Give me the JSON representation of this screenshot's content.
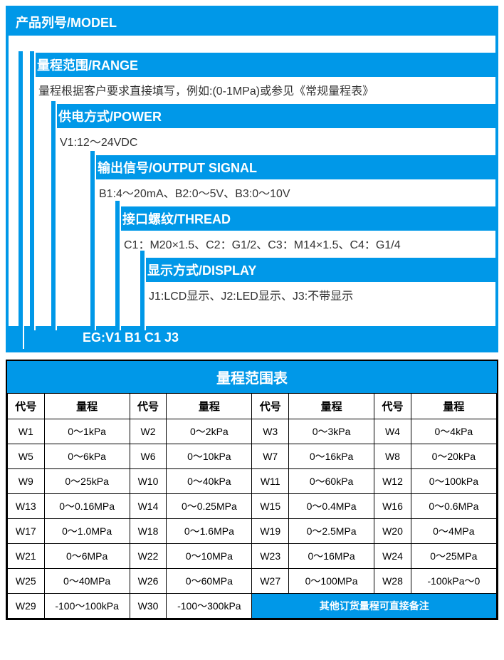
{
  "colors": {
    "accent": "#0098e8",
    "text": "#333333",
    "border": "#000000",
    "background": "#ffffff"
  },
  "model": {
    "header": "产品列号/MODEL",
    "sections": {
      "range": {
        "header": "量程范围/RANGE",
        "content": "量程根据客户要求直接填写，例如:(0-1MPa)或参见《常规量程表》"
      },
      "power": {
        "header": "供电方式/POWER",
        "content": "V1:12～24VDC"
      },
      "output": {
        "header": "输出信号/OUTPUT SIGNAL",
        "content": "B1:4～20mA、B2:0～5V、B3:0～10V"
      },
      "thread": {
        "header": "接口螺纹/THREAD",
        "content": "C1：M20×1.5、C2：G1/2、C3：M14×1.5、C4：G1/4"
      },
      "display": {
        "header": "显示方式/DISPLAY",
        "content": "J1:LCD显示、J2:LED显示、J3:不带显示"
      }
    },
    "example": "EG:V1 B1 C1 J3"
  },
  "range_table": {
    "title": "量程范围表",
    "col_headers": {
      "code": "代号",
      "value": "量程"
    },
    "note": "其他订货量程可直接备注",
    "items": [
      {
        "code": "W1",
        "value": "0～1kPa"
      },
      {
        "code": "W2",
        "value": "0～2kPa"
      },
      {
        "code": "W3",
        "value": "0～3kPa"
      },
      {
        "code": "W4",
        "value": "0～4kPa"
      },
      {
        "code": "W5",
        "value": "0～6kPa"
      },
      {
        "code": "W6",
        "value": "0～10kPa"
      },
      {
        "code": "W7",
        "value": "0～16kPa"
      },
      {
        "code": "W8",
        "value": "0～20kPa"
      },
      {
        "code": "W9",
        "value": "0～25kPa"
      },
      {
        "code": "W10",
        "value": "0～40kPa"
      },
      {
        "code": "W11",
        "value": "0～60kPa"
      },
      {
        "code": "W12",
        "value": "0～100kPa"
      },
      {
        "code": "W13",
        "value": "0～0.16MPa"
      },
      {
        "code": "W14",
        "value": "0～0.25MPa"
      },
      {
        "code": "W15",
        "value": "0～0.4MPa"
      },
      {
        "code": "W16",
        "value": "0～0.6MPa"
      },
      {
        "code": "W17",
        "value": "0～1.0MPa"
      },
      {
        "code": "W18",
        "value": "0～1.6MPa"
      },
      {
        "code": "W19",
        "value": "0～2.5MPa"
      },
      {
        "code": "W20",
        "value": "0～4MPa"
      },
      {
        "code": "W21",
        "value": "0～6MPa"
      },
      {
        "code": "W22",
        "value": "0～10MPa"
      },
      {
        "code": "W23",
        "value": "0～16MPa"
      },
      {
        "code": "W24",
        "value": "0～25MPa"
      },
      {
        "code": "W25",
        "value": "0～40MPa"
      },
      {
        "code": "W26",
        "value": "0～60MPa"
      },
      {
        "code": "W27",
        "value": "0～100MPa"
      },
      {
        "code": "W28",
        "value": "-100kPa～0"
      },
      {
        "code": "W29",
        "value": "-100～100kPa"
      },
      {
        "code": "W30",
        "value": "-100～300kPa"
      }
    ]
  }
}
